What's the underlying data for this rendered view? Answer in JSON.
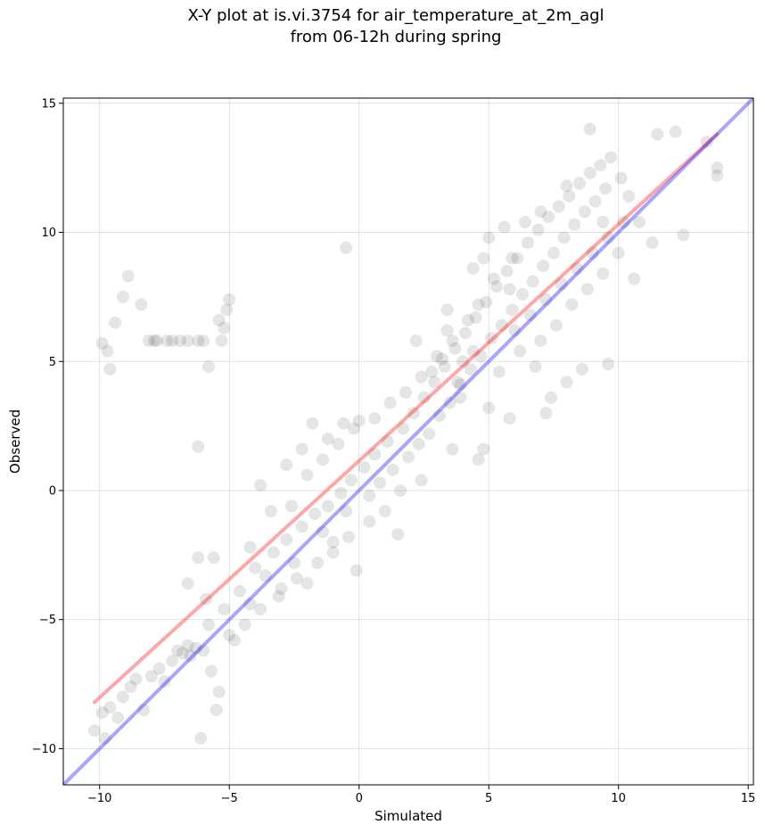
{
  "chart_data": {
    "type": "scatter",
    "title_line1": "X-Y plot at is.vi.3754 for air_temperature_at_2m_agl",
    "title_line2": "from 06-12h during spring",
    "xlabel": "Simulated",
    "ylabel": "Observed",
    "xlim": [
      -11.4,
      15.2
    ],
    "ylim": [
      -11.4,
      15.2
    ],
    "x_ticks": [
      -10,
      -5,
      0,
      5,
      10,
      15
    ],
    "y_ticks": [
      -10,
      -5,
      0,
      5,
      10,
      15
    ],
    "x_tick_labels": [
      "−10",
      "−5",
      "0",
      "5",
      "10",
      "15"
    ],
    "y_tick_labels": [
      "−10",
      "−5",
      "0",
      "5",
      "10",
      "15"
    ],
    "grid": true,
    "point_color": "#000000",
    "point_alpha": 0.1,
    "points": [
      [
        -9.9,
        5.7
      ],
      [
        -9.7,
        5.4
      ],
      [
        -9.6,
        4.7
      ],
      [
        -9.4,
        6.5
      ],
      [
        -9.1,
        7.5
      ],
      [
        -8.9,
        8.3
      ],
      [
        -8.4,
        7.2
      ],
      [
        -8.1,
        5.8
      ],
      [
        -7.9,
        5.8
      ],
      [
        -7.8,
        5.8
      ],
      [
        -7.4,
        5.8
      ],
      [
        -7.2,
        5.8
      ],
      [
        -6.9,
        5.8
      ],
      [
        -6.6,
        5.8
      ],
      [
        -6.2,
        5.8
      ],
      [
        -6.0,
        5.8
      ],
      [
        -5.8,
        4.8
      ],
      [
        -5.4,
        6.6
      ],
      [
        -5.3,
        5.8
      ],
      [
        -5.2,
        6.3
      ],
      [
        -5.1,
        7.0
      ],
      [
        -5.0,
        7.4
      ],
      [
        -6.2,
        1.7
      ],
      [
        -0.5,
        9.4
      ],
      [
        -10.2,
        -9.3
      ],
      [
        -9.8,
        -9.6
      ],
      [
        -9.9,
        -8.6
      ],
      [
        -9.6,
        -8.4
      ],
      [
        -9.3,
        -8.8
      ],
      [
        -9.1,
        -8.0
      ],
      [
        -8.8,
        -7.6
      ],
      [
        -8.6,
        -7.3
      ],
      [
        -8.3,
        -8.5
      ],
      [
        -8.0,
        -7.2
      ],
      [
        -7.7,
        -6.9
      ],
      [
        -7.5,
        -7.4
      ],
      [
        -7.2,
        -6.6
      ],
      [
        -7.0,
        -6.2
      ],
      [
        -6.8,
        -6.3
      ],
      [
        -6.6,
        -6.0
      ],
      [
        -6.5,
        -6.4
      ],
      [
        -6.3,
        -6.1
      ],
      [
        -6.1,
        -9.6
      ],
      [
        -6.0,
        -6.2
      ],
      [
        -5.7,
        -7.0
      ],
      [
        -5.4,
        -7.8
      ],
      [
        -5.5,
        -8.5
      ],
      [
        -5.8,
        -5.2
      ],
      [
        -5.2,
        -4.6
      ],
      [
        -4.8,
        -5.8
      ],
      [
        -4.6,
        -3.9
      ],
      [
        -4.2,
        -4.4
      ],
      [
        -4.0,
        -3.0
      ],
      [
        -3.6,
        -3.3
      ],
      [
        -3.3,
        -2.4
      ],
      [
        -3.1,
        -4.1
      ],
      [
        -2.8,
        -1.9
      ],
      [
        -2.5,
        -2.8
      ],
      [
        -2.2,
        -1.4
      ],
      [
        -2.0,
        -3.6
      ],
      [
        -1.7,
        -0.9
      ],
      [
        -1.4,
        -1.6
      ],
      [
        -1.2,
        -0.6
      ],
      [
        -1.0,
        -2.0
      ],
      [
        -0.7,
        -0.1
      ],
      [
        -0.5,
        -0.8
      ],
      [
        -0.3,
        0.4
      ],
      [
        -0.1,
        -3.1
      ],
      [
        0.2,
        0.9
      ],
      [
        0.4,
        -0.2
      ],
      [
        0.6,
        1.4
      ],
      [
        0.8,
        0.3
      ],
      [
        1.1,
        1.9
      ],
      [
        1.3,
        0.8
      ],
      [
        1.5,
        -1.7
      ],
      [
        1.7,
        2.4
      ],
      [
        1.9,
        1.3
      ],
      [
        2.1,
        3.0
      ],
      [
        2.3,
        1.8
      ],
      [
        2.5,
        3.6
      ],
      [
        2.7,
        2.2
      ],
      [
        2.9,
        4.2
      ],
      [
        3.1,
        2.9
      ],
      [
        3.3,
        4.8
      ],
      [
        3.5,
        3.4
      ],
      [
        3.7,
        5.5
      ],
      [
        3.9,
        4.1
      ],
      [
        4.1,
        6.1
      ],
      [
        4.3,
        4.7
      ],
      [
        4.5,
        6.7
      ],
      [
        4.7,
        5.2
      ],
      [
        4.9,
        7.3
      ],
      [
        5.1,
        5.9
      ],
      [
        5.3,
        7.9
      ],
      [
        5.5,
        6.4
      ],
      [
        5.7,
        8.5
      ],
      [
        5.9,
        7.0
      ],
      [
        6.1,
        9.0
      ],
      [
        6.3,
        7.6
      ],
      [
        6.5,
        9.6
      ],
      [
        6.7,
        8.1
      ],
      [
        6.9,
        10.1
      ],
      [
        7.1,
        8.7
      ],
      [
        7.3,
        10.6
      ],
      [
        7.5,
        9.2
      ],
      [
        7.7,
        11.0
      ],
      [
        7.9,
        9.8
      ],
      [
        8.1,
        11.4
      ],
      [
        8.3,
        10.3
      ],
      [
        8.5,
        11.9
      ],
      [
        8.7,
        10.8
      ],
      [
        8.9,
        12.3
      ],
      [
        9.1,
        11.2
      ],
      [
        9.3,
        12.6
      ],
      [
        9.5,
        11.7
      ],
      [
        9.7,
        12.9
      ],
      [
        10.1,
        12.1
      ],
      [
        10.4,
        11.4
      ],
      [
        10.8,
        10.4
      ],
      [
        11.3,
        9.6
      ],
      [
        11.5,
        13.8
      ],
      [
        12.2,
        13.9
      ],
      [
        12.5,
        9.9
      ],
      [
        13.4,
        13.5
      ],
      [
        13.8,
        12.5
      ],
      [
        13.8,
        12.2
      ],
      [
        8.9,
        14.0
      ],
      [
        3.8,
        4.2
      ],
      [
        4.0,
        5.0
      ],
      [
        3.6,
        5.8
      ],
      [
        4.2,
        6.6
      ],
      [
        3.4,
        6.2
      ],
      [
        4.4,
        5.4
      ],
      [
        3.9,
        3.6
      ],
      [
        3.2,
        5.1
      ],
      [
        4.6,
        7.2
      ],
      [
        2.8,
        4.6
      ],
      [
        5.2,
        8.2
      ],
      [
        5.8,
        7.8
      ],
      [
        6.0,
        6.2
      ],
      [
        6.6,
        6.8
      ],
      [
        7.2,
        7.4
      ],
      [
        7.8,
        8.0
      ],
      [
        8.4,
        8.6
      ],
      [
        9.0,
        9.2
      ],
      [
        9.6,
        9.8
      ],
      [
        10.2,
        10.4
      ],
      [
        5.4,
        4.6
      ],
      [
        6.2,
        5.4
      ],
      [
        7.0,
        5.8
      ],
      [
        7.6,
        6.4
      ],
      [
        8.2,
        7.2
      ],
      [
        8.8,
        7.8
      ],
      [
        9.4,
        8.4
      ],
      [
        6.8,
        4.8
      ],
      [
        7.4,
        3.6
      ],
      [
        8.0,
        4.2
      ],
      [
        8.6,
        4.7
      ],
      [
        9.6,
        4.9
      ],
      [
        7.2,
        3.0
      ],
      [
        5.8,
        2.8
      ],
      [
        5.0,
        3.2
      ],
      [
        4.6,
        1.2
      ],
      [
        3.6,
        1.6
      ],
      [
        2.4,
        0.4
      ],
      [
        1.6,
        0.0
      ],
      [
        1.0,
        -0.8
      ],
      [
        0.4,
        -1.2
      ],
      [
        -0.4,
        -1.8
      ],
      [
        -1.0,
        -2.4
      ],
      [
        -1.6,
        -2.8
      ],
      [
        -2.4,
        -3.4
      ],
      [
        -3.0,
        -3.8
      ],
      [
        -3.8,
        -4.6
      ],
      [
        -4.4,
        -5.2
      ],
      [
        -5.0,
        -5.6
      ],
      [
        -2.6,
        -0.6
      ],
      [
        -2.0,
        0.6
      ],
      [
        -1.4,
        1.2
      ],
      [
        -0.8,
        1.8
      ],
      [
        -0.2,
        2.4
      ],
      [
        0.6,
        2.8
      ],
      [
        1.2,
        3.4
      ],
      [
        1.8,
        3.8
      ],
      [
        2.4,
        4.4
      ],
      [
        3.0,
        5.2
      ],
      [
        3.4,
        7.0
      ],
      [
        2.2,
        5.8
      ],
      [
        4.8,
        9.0
      ],
      [
        5.6,
        10.2
      ],
      [
        6.4,
        10.4
      ],
      [
        7.0,
        10.8
      ],
      [
        8.0,
        11.8
      ],
      [
        9.4,
        10.4
      ],
      [
        10.6,
        8.2
      ],
      [
        10.0,
        9.2
      ],
      [
        -3.4,
        -0.8
      ],
      [
        -4.2,
        -2.2
      ],
      [
        -5.6,
        -2.6
      ],
      [
        -6.2,
        -2.6
      ],
      [
        -6.6,
        -3.6
      ],
      [
        -5.9,
        -4.2
      ],
      [
        -1.8,
        2.6
      ],
      [
        -1.2,
        2.0
      ],
      [
        -0.6,
        2.6
      ],
      [
        0.0,
        2.7
      ],
      [
        -3.8,
        0.2
      ],
      [
        -2.2,
        1.6
      ],
      [
        -2.8,
        1.0
      ],
      [
        4.8,
        1.6
      ],
      [
        5.0,
        9.8
      ],
      [
        4.4,
        8.6
      ],
      [
        5.9,
        9.0
      ]
    ],
    "lines": [
      {
        "color": "#ff0000",
        "alpha": 0.35,
        "from": [
          -10.2,
          -8.2
        ],
        "to": [
          13.8,
          13.8
        ]
      },
      {
        "color": "#0000ff",
        "alpha": 0.35,
        "from": [
          -11.4,
          -11.4
        ],
        "to": [
          15.2,
          15.2
        ]
      }
    ]
  }
}
